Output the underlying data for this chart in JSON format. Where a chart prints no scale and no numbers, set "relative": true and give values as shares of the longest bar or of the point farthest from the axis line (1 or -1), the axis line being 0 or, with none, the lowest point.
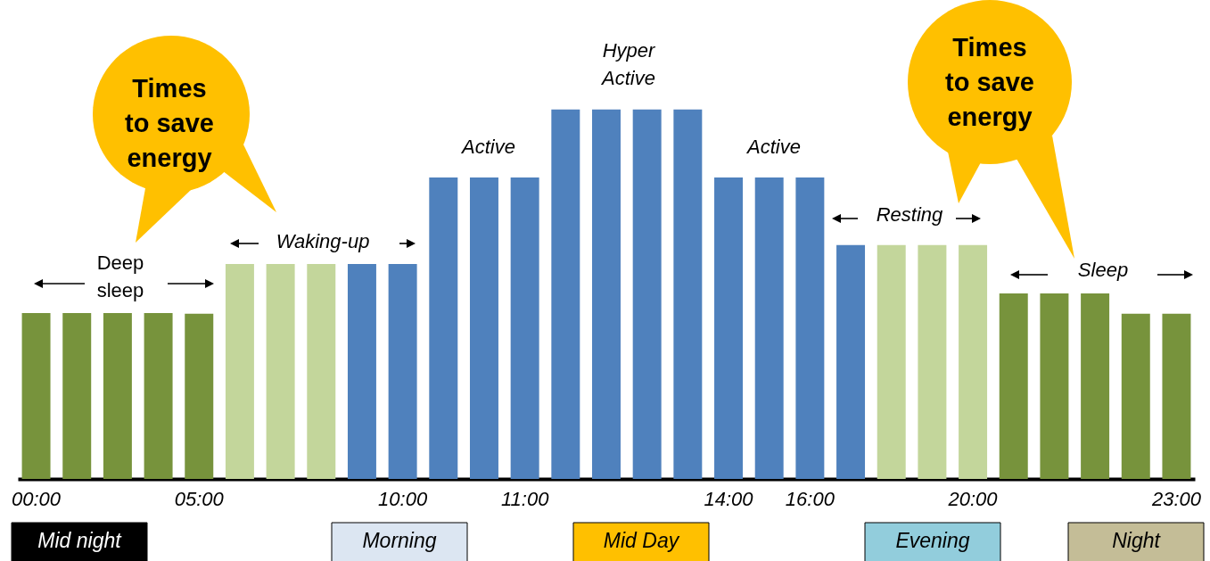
{
  "chart_data": {
    "type": "bar",
    "relative": true,
    "categories": [
      "00:00",
      null,
      null,
      null,
      "05:00",
      null,
      null,
      null,
      null,
      "10:00",
      null,
      null,
      "11:00",
      null,
      null,
      null,
      null,
      "14:00",
      null,
      "16:00",
      null,
      null,
      null,
      "20:00",
      null,
      null,
      null,
      null,
      "23:00"
    ],
    "values": [
      0.449,
      0.449,
      0.449,
      0.449,
      0.447,
      0.582,
      0.582,
      0.582,
      0.582,
      0.582,
      0.816,
      0.816,
      0.816,
      1,
      1,
      1,
      1,
      0.816,
      0.816,
      0.816,
      0.633,
      0.633,
      0.633,
      0.633,
      0.502,
      0.502,
      0.502,
      0.447,
      0.447
    ],
    "colors": [
      "#77933c",
      "#77933c",
      "#77933c",
      "#77933c",
      "#77933c",
      "#c3d69b",
      "#c3d69b",
      "#c3d69b",
      "#4f81bd",
      "#4f81bd",
      "#4f81bd",
      "#4f81bd",
      "#4f81bd",
      "#4f81bd",
      "#4f81bd",
      "#4f81bd",
      "#4f81bd",
      "#4f81bd",
      "#4f81bd",
      "#4f81bd",
      "#4f81bd",
      "#c3d69b",
      "#c3d69b",
      "#c3d69b",
      "#77933c",
      "#77933c",
      "#77933c",
      "#77933c",
      "#77933c"
    ],
    "annotations": [
      "Deep\nsleep",
      "Waking-up",
      "Active",
      "Hyper\nActive",
      "Active",
      "Resting",
      "Sleep",
      "Times\nto save\nenergy",
      "Times\nto save\nenergy",
      "Mid night",
      "Morning",
      "Mid Day",
      "Evening",
      "Night"
    ]
  }
}
